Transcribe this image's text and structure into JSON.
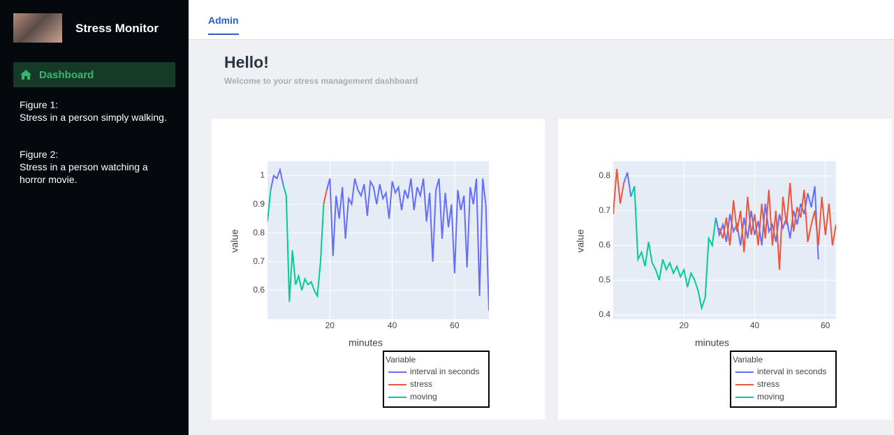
{
  "sidebar": {
    "brand": "Stress Monitor",
    "nav": [
      "Dashboard"
    ],
    "notes": [
      {
        "title": "Figure 1:",
        "text": "Stress in a person simply walking."
      },
      {
        "title": "Figure 2:",
        "text": "Stress in a person watching a horror movie."
      }
    ]
  },
  "header": {
    "tabs": [
      "Admin"
    ]
  },
  "greeting": {
    "title": "Hello!",
    "subtitle": "Welcome to your stress management dashboard"
  },
  "chart_data": [
    {
      "type": "line",
      "x_label": "minutes",
      "y_label": "value",
      "legend_title": "Variable",
      "grid": true,
      "xlim": [
        0,
        71
      ],
      "ylim": [
        0.5,
        1.05
      ],
      "xticks": [
        20,
        40,
        60
      ],
      "yticks": [
        0.6,
        0.7,
        0.8,
        0.9,
        1
      ],
      "series": [
        {
          "name": "interval in seconds",
          "color": "#636efa",
          "x": [
            1,
            2,
            3,
            4,
            5,
            null,
            19,
            20,
            21,
            22,
            23,
            24,
            25,
            26,
            27,
            28,
            29,
            30,
            31,
            32,
            33,
            34,
            35,
            36,
            37,
            38,
            39,
            40,
            41,
            42,
            43,
            44,
            45,
            46,
            47,
            48,
            49,
            50,
            51,
            52,
            53,
            54,
            55,
            56,
            57,
            58,
            59,
            60,
            61,
            62,
            63,
            64,
            65,
            66,
            67,
            68,
            69,
            70,
            71
          ],
          "values": [
            0.95,
            1.0,
            0.99,
            1.02,
            0.97,
            null,
            0.95,
            0.99,
            0.72,
            0.93,
            0.85,
            0.96,
            0.78,
            0.92,
            0.9,
            0.99,
            0.95,
            0.93,
            0.97,
            0.86,
            0.98,
            0.96,
            0.9,
            0.97,
            0.92,
            0.94,
            0.85,
            0.98,
            0.94,
            0.96,
            0.88,
            0.95,
            0.92,
            0.99,
            0.88,
            0.96,
            0.93,
            0.99,
            0.84,
            0.94,
            0.7,
            0.95,
            0.99,
            0.78,
            0.94,
            0.82,
            0.9,
            0.66,
            0.95,
            0.88,
            0.93,
            0.68,
            0.96,
            0.9,
            0.99,
            0.58,
            0.99,
            0.9,
            0.53
          ]
        },
        {
          "name": "stress",
          "color": "#ef553b",
          "x": [
            18,
            19
          ],
          "values": [
            0.9,
            0.95
          ]
        },
        {
          "name": "moving",
          "color": "#00cc96",
          "x": [
            0,
            1,
            null,
            5,
            6,
            7,
            8,
            9,
            10,
            11,
            12,
            13,
            14,
            15,
            16,
            17,
            18
          ],
          "values": [
            0.84,
            0.95,
            null,
            0.97,
            0.93,
            0.56,
            0.74,
            0.62,
            0.65,
            0.6,
            0.64,
            0.62,
            0.63,
            0.6,
            0.58,
            0.7,
            0.9
          ]
        }
      ]
    },
    {
      "type": "line",
      "x_label": "minutes",
      "y_label": "value",
      "legend_title": "Variable",
      "grid": true,
      "xlim": [
        0,
        63
      ],
      "ylim": [
        0.388,
        0.842
      ],
      "xticks": [
        20,
        40,
        60
      ],
      "yticks": [
        0.4,
        0.5,
        0.6,
        0.7,
        0.8
      ],
      "series": [
        {
          "name": "interval in seconds",
          "color": "#636efa",
          "x": [
            3,
            4,
            5,
            null,
            29,
            30,
            31,
            32,
            33,
            34,
            35,
            36,
            37,
            38,
            39,
            40,
            41,
            42,
            43,
            44,
            45,
            46,
            47,
            48,
            49,
            50,
            51,
            52,
            53,
            54,
            55,
            56,
            57,
            58
          ],
          "values": [
            0.78,
            0.81,
            0.74,
            null,
            0.68,
            0.63,
            0.66,
            0.61,
            0.69,
            0.64,
            0.66,
            0.6,
            0.68,
            0.62,
            0.7,
            0.63,
            0.67,
            0.6,
            0.72,
            0.64,
            0.66,
            0.61,
            0.69,
            0.65,
            0.68,
            0.62,
            0.7,
            0.66,
            0.72,
            0.69,
            0.75,
            0.71,
            0.77,
            0.56
          ]
        },
        {
          "name": "stress",
          "color": "#ef553b",
          "x": [
            0,
            1,
            2,
            3,
            null,
            30,
            31,
            32,
            33,
            34,
            35,
            36,
            37,
            38,
            39,
            40,
            41,
            42,
            43,
            44,
            45,
            46,
            47,
            48,
            49,
            50,
            51,
            52,
            53,
            54,
            55,
            56,
            57,
            58,
            59,
            60,
            61,
            62,
            63
          ],
          "values": [
            0.69,
            0.82,
            0.72,
            0.78,
            null,
            0.65,
            0.62,
            0.68,
            0.6,
            0.73,
            0.64,
            0.7,
            0.58,
            0.74,
            0.63,
            0.69,
            0.6,
            0.72,
            0.62,
            0.76,
            0.6,
            0.7,
            0.53,
            0.74,
            0.66,
            0.78,
            0.64,
            0.71,
            0.68,
            0.76,
            0.61,
            0.66,
            0.7,
            0.6,
            0.74,
            0.63,
            0.72,
            0.6,
            0.66
          ]
        },
        {
          "name": "moving",
          "color": "#00cc96",
          "x": [
            5,
            6,
            7,
            8,
            9,
            10,
            11,
            12,
            13,
            14,
            15,
            16,
            17,
            18,
            19,
            20,
            21,
            22,
            23,
            24,
            25,
            26,
            27,
            28,
            29
          ],
          "values": [
            0.74,
            0.77,
            0.56,
            0.58,
            0.54,
            0.61,
            0.55,
            0.53,
            0.5,
            0.56,
            0.53,
            0.55,
            0.52,
            0.54,
            0.51,
            0.53,
            0.48,
            0.52,
            0.5,
            0.47,
            0.42,
            0.45,
            0.62,
            0.6,
            0.68
          ]
        }
      ]
    }
  ]
}
